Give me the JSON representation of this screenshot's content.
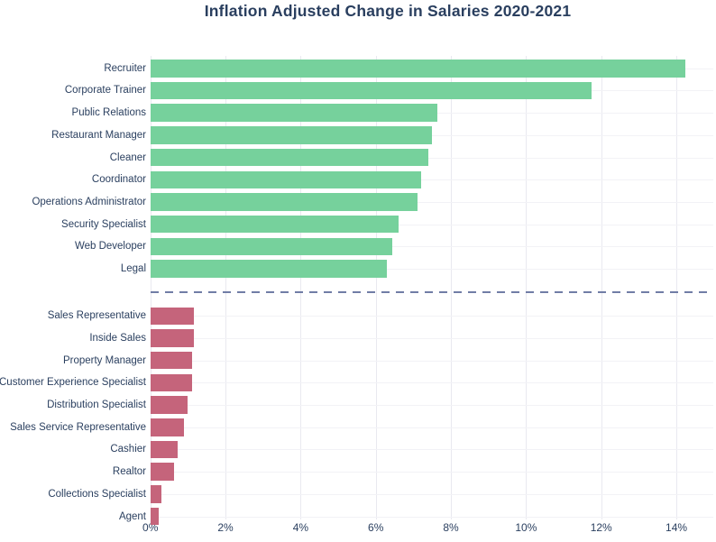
{
  "title": "Inflation Adjusted Change in Salaries 2020-2021",
  "colors": {
    "positive_bar": "#76d19c",
    "negative_bar": "#c5647b",
    "divider": "#717da6",
    "text": "#2a3f5f",
    "gridline": "#e9e9f0"
  },
  "chart_data": {
    "type": "bar",
    "orientation": "horizontal",
    "title": "Inflation Adjusted Change in Salaries 2020-2021",
    "xlabel": "",
    "ylabel": "",
    "x_range": [
      0,
      15
    ],
    "grid": true,
    "legend": false,
    "ticks": [
      {
        "label": "0%",
        "value": 0
      },
      {
        "label": "2%",
        "value": 2
      },
      {
        "label": "4%",
        "value": 4
      },
      {
        "label": "6%",
        "value": 6
      },
      {
        "label": "8%",
        "value": 8
      },
      {
        "label": "10%",
        "value": 10
      },
      {
        "label": "12%",
        "value": 12
      },
      {
        "label": "14%",
        "value": 14
      }
    ],
    "groups": [
      {
        "name": "top-gainers",
        "color": "#76d19c",
        "categories": [
          "Recruiter",
          "Corporate Trainer",
          "Public Relations",
          "Restaurant Manager",
          "Cleaner",
          "Coordinator",
          "Operations Administrator",
          "Security Specialist",
          "Web Developer",
          "Legal"
        ],
        "values": [
          14.25,
          11.75,
          7.65,
          7.5,
          7.4,
          7.2,
          7.1,
          6.6,
          6.45,
          6.3
        ]
      },
      {
        "name": "bottom-gainers",
        "color": "#c5647b",
        "categories": [
          "Sales Representative",
          "Inside Sales",
          "Property Manager",
          "Customer Experience Specialist",
          "Distribution Specialist",
          "Sales Service Representative",
          "Cashier",
          "Realtor",
          "Collections Specialist",
          "Agent"
        ],
        "values": [
          1.16,
          1.15,
          1.12,
          1.12,
          1.0,
          0.9,
          0.72,
          0.62,
          0.3,
          0.22
        ]
      }
    ],
    "divider": {
      "style": "dashed",
      "color": "#717da6"
    }
  }
}
